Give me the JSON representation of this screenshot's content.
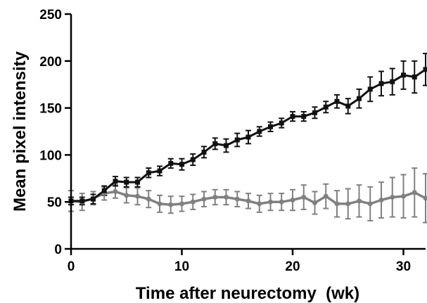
{
  "chart_data": {
    "type": "line",
    "xlabel": "Time after neurectomy  (wk)",
    "ylabel": "Mean pixel intensity",
    "xlim": [
      0,
      32
    ],
    "ylim": [
      0,
      250
    ],
    "xticks": [
      0,
      10,
      20,
      30
    ],
    "yticks": [
      0,
      50,
      100,
      150,
      200,
      250
    ],
    "grid": false,
    "legend": "none",
    "series": [
      {
        "color": "#111111",
        "marker": "square",
        "x": [
          0,
          1,
          2,
          3,
          4,
          5,
          6,
          7,
          8,
          9,
          10,
          11,
          12,
          13,
          14,
          15,
          16,
          17,
          18,
          19,
          20,
          21,
          22,
          23,
          24,
          25,
          26,
          27,
          28,
          29,
          30,
          31,
          32
        ],
        "y": [
          51,
          51,
          53,
          62,
          72,
          71,
          71,
          81,
          83,
          91,
          90,
          95,
          103,
          112,
          110,
          116,
          119,
          125,
          130,
          134,
          141,
          141,
          145,
          151,
          157,
          152,
          160,
          170,
          176,
          178,
          185,
          183,
          191
        ],
        "err": [
          4,
          4,
          5,
          5,
          5,
          5,
          5,
          5,
          5,
          5,
          6,
          6,
          6,
          6,
          7,
          7,
          7,
          5,
          5,
          5,
          5,
          5,
          6,
          6,
          7,
          8,
          10,
          13,
          13,
          14,
          15,
          17,
          17
        ]
      },
      {
        "color": "#808080",
        "marker": "circle",
        "x": [
          0,
          1,
          2,
          3,
          4,
          5,
          6,
          7,
          8,
          9,
          10,
          11,
          12,
          13,
          14,
          15,
          16,
          17,
          18,
          19,
          20,
          21,
          22,
          23,
          24,
          25,
          26,
          27,
          28,
          29,
          30,
          31,
          32
        ],
        "y": [
          51,
          50,
          54,
          59,
          61,
          57,
          56,
          53,
          48,
          47,
          48,
          50,
          53,
          55,
          55,
          53,
          51,
          48,
          50,
          50,
          52,
          55,
          49,
          56,
          48,
          48,
          51,
          48,
          52,
          55,
          56,
          60,
          54
        ],
        "err": [
          11,
          9,
          7,
          7,
          7,
          8,
          9,
          9,
          9,
          9,
          8,
          8,
          8,
          8,
          8,
          8,
          8,
          9,
          9,
          9,
          11,
          13,
          12,
          13,
          14,
          16,
          17,
          18,
          19,
          21,
          23,
          26,
          26
        ]
      }
    ]
  }
}
